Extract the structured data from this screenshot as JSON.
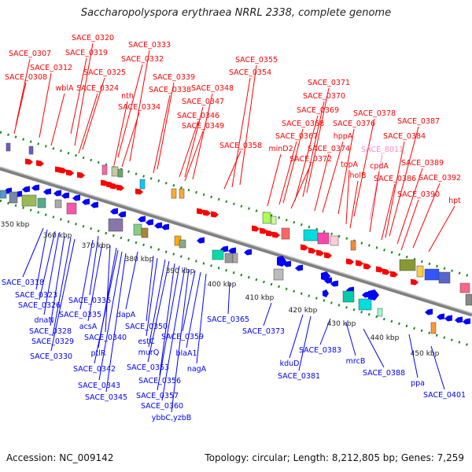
{
  "header": {
    "title": "Saccharopolyspora erythraea NRRL 2338, complete genome"
  },
  "footer": {
    "accession": "Accession: NC_009142",
    "topology": "Topology: circular; Length: 8,212,805 bp; Genes: 7,259"
  },
  "colors": {
    "top_strand": "#ff0000",
    "bottom_strand": "#0000ff",
    "highlight": "#ff88cc",
    "axis": "#808080",
    "ticks": "#1a8a1a"
  },
  "top_labels": [
    "SACE_0307",
    "SACE_0308",
    "SACE_0312",
    "SACE_0319",
    "SACE_0320",
    "wblA",
    "SACE_0325",
    "SACE_0324",
    "SACE_0332",
    "SACE_0333",
    "nth",
    "SACE_0334",
    "SACE_0339",
    "SACE_0338",
    "SACE_0346",
    "SACE_0347",
    "SACE_0348",
    "SACE_0349",
    "SACE_0355",
    "SACE_0354",
    "SACE_0358",
    "SACE_0371",
    "SACE_0370",
    "SACE_0369",
    "SACE_0368",
    "SACE_0367",
    "minD2",
    "SACE_0372",
    "SACE_0374",
    "hppA",
    "SACE_0376",
    "SACE_0378",
    "SACE_8011",
    "topA",
    "holB",
    "cpdA",
    "SACE_0387",
    "SACE_0384",
    "SACE_0386",
    "SACE_0389",
    "SACE_0392",
    "SACE_0390",
    "hpt"
  ],
  "bottom_labels": [
    "SACE_0318",
    "SACE_0323",
    "SACE_0326",
    "dnaN",
    "SACE_0328",
    "SACE_0329",
    "SACE_0330",
    "SACE_0336",
    "SACE_0335",
    "acsA",
    "SACE_0340",
    "ptlR",
    "SACE_0342",
    "SACE_0343",
    "SACE_0345",
    "dapA",
    "SACE_0350",
    "estC",
    "murQ",
    "SACE_0353",
    "SACE_0356",
    "SACE_0357",
    "SACE_0360",
    "ybbC,yzbB",
    "SACE_0359",
    "blaA1",
    "nagA",
    "SACE_0365",
    "SACE_0373",
    "kduD",
    "SACE_0381",
    "SACE_0383",
    "mrcB",
    "SACE_0388",
    "ppa",
    "SACE_0401"
  ],
  "kbp_labels": [
    "350 kbp",
    "360 kbp",
    "370 kbp",
    "380 kbp",
    "390 kbp",
    "400 kbp",
    "410 kbp",
    "420 kbp",
    "430 kbp",
    "440 kbp",
    "450 kbp"
  ]
}
